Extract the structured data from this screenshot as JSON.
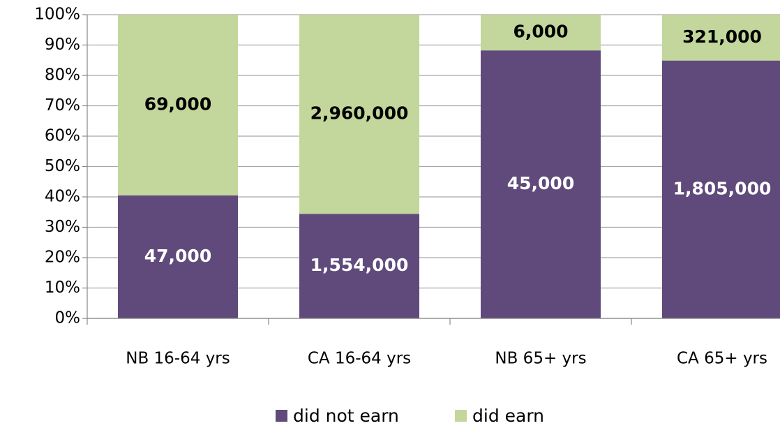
{
  "chart_data": {
    "type": "bar",
    "stacking": "percent",
    "categories": [
      "NB 16-64 yrs",
      "CA 16-64 yrs",
      "NB 65+ yrs",
      "CA 65+ yrs"
    ],
    "series": [
      {
        "name": "did not earn",
        "color": "#5f4a7b",
        "values": [
          47000,
          1554000,
          45000,
          1805000
        ],
        "value_labels": [
          "47,000",
          "1,554,000",
          "45,000",
          "1,805,000"
        ],
        "label_color": "#ffffff"
      },
      {
        "name": "did earn",
        "color": "#c3d69b",
        "values": [
          69000,
          2960000,
          6000,
          321000
        ],
        "value_labels": [
          "69,000",
          "2,960,000",
          "6,000",
          "321,000"
        ],
        "label_color": "#000000"
      }
    ],
    "ylim": [
      0,
      100
    ],
    "yticks": [
      {
        "value": 0,
        "label": "0%"
      },
      {
        "value": 10,
        "label": "10%"
      },
      {
        "value": 20,
        "label": "20%"
      },
      {
        "value": 30,
        "label": "30%"
      },
      {
        "value": 40,
        "label": "40%"
      },
      {
        "value": 50,
        "label": "50%"
      },
      {
        "value": 60,
        "label": "60%"
      },
      {
        "value": 70,
        "label": "70%"
      },
      {
        "value": 80,
        "label": "80%"
      },
      {
        "value": 90,
        "label": "90%"
      },
      {
        "value": 100,
        "label": "100%"
      }
    ],
    "grid": true,
    "legend": "bottom"
  }
}
